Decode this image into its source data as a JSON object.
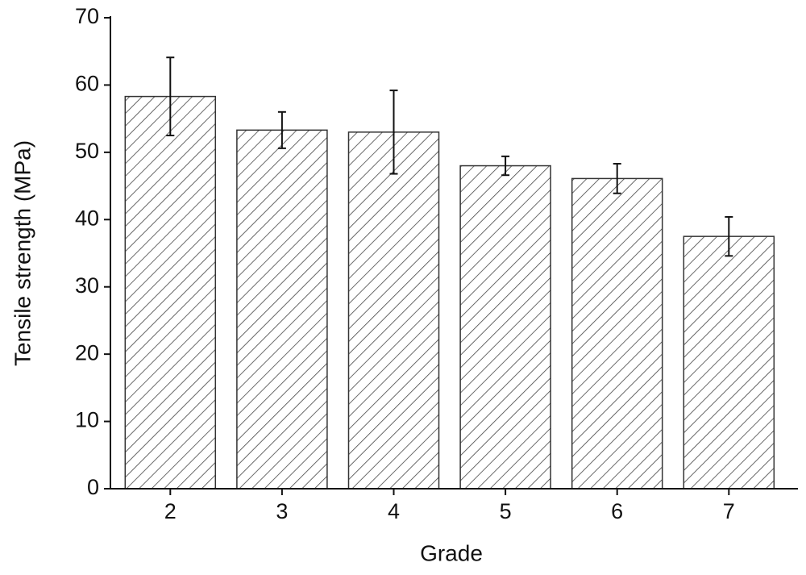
{
  "chart_data": {
    "type": "bar",
    "x_label": "Grade",
    "y_label": "Tensile strength (MPa)",
    "categories": [
      "2",
      "3",
      "4",
      "5",
      "6",
      "7"
    ],
    "values": [
      58.3,
      53.3,
      53,
      48,
      46.1,
      37.5
    ],
    "errors": [
      5.8,
      2.7,
      6.2,
      1.4,
      2.2,
      2.9
    ],
    "color": "#333333",
    "ylim": [
      0,
      70
    ],
    "yticks": [
      0,
      10,
      20,
      30,
      40,
      50,
      60,
      70
    ]
  }
}
